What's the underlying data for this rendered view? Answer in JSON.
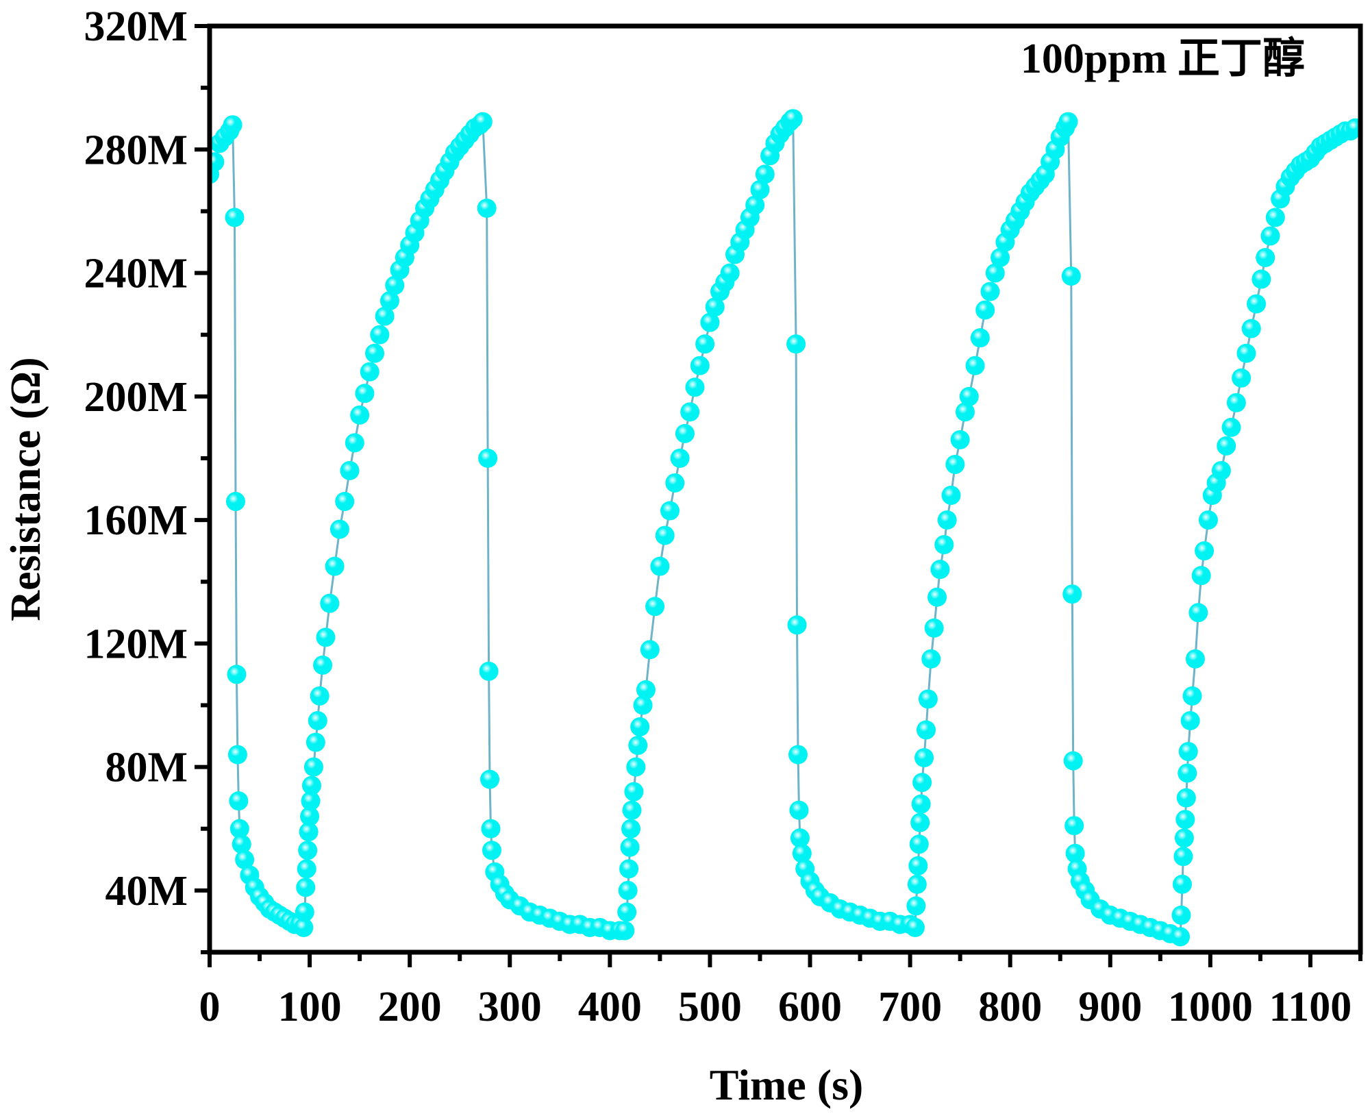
{
  "chart_data": {
    "type": "scatter",
    "title": "",
    "annotation": "100ppm 正丁醇",
    "xlabel": "Time (s)",
    "ylabel": "Resistance (Ω)",
    "xlim": [
      0,
      1150
    ],
    "ylim": [
      20,
      320
    ],
    "x_unit": "s",
    "y_unit": "MΩ",
    "xticks": [
      0,
      100,
      200,
      300,
      400,
      500,
      600,
      700,
      800,
      900,
      1000,
      1100
    ],
    "xtick_labels": [
      "0",
      "100",
      "200",
      "300",
      "400",
      "500",
      "600",
      "700",
      "800",
      "900",
      "1000",
      "1100"
    ],
    "yticks": [
      40,
      80,
      120,
      160,
      200,
      240,
      280,
      320
    ],
    "ytick_labels": [
      "40M",
      "80M",
      "120M",
      "160M",
      "200M",
      "240M",
      "280M",
      "320M"
    ],
    "grid": false,
    "legend": "none",
    "colors": {
      "marker": "#00F2F2",
      "marker_highlight": "#E8FFFF",
      "line": "#6FB3C8",
      "axis": "#000000"
    },
    "series": [
      {
        "points": [
          [
            0,
            272
          ],
          [
            5,
            276
          ],
          [
            10,
            282
          ],
          [
            15,
            284
          ],
          [
            20,
            286
          ],
          [
            23,
            288
          ],
          [
            25,
            258
          ],
          [
            26,
            166
          ],
          [
            27,
            110
          ],
          [
            28,
            84
          ],
          [
            29,
            69
          ],
          [
            30,
            60
          ],
          [
            32,
            55
          ],
          [
            35,
            50
          ],
          [
            40,
            45
          ],
          [
            45,
            41
          ],
          [
            50,
            38
          ],
          [
            55,
            36
          ],
          [
            60,
            34
          ],
          [
            65,
            33
          ],
          [
            70,
            32
          ],
          [
            75,
            31
          ],
          [
            80,
            30
          ],
          [
            85,
            29
          ],
          [
            90,
            29
          ],
          [
            94,
            28
          ],
          [
            95,
            33
          ],
          [
            96,
            41
          ],
          [
            97,
            47
          ],
          [
            98,
            53
          ],
          [
            99,
            59
          ],
          [
            100,
            64
          ],
          [
            101,
            69
          ],
          [
            102,
            74
          ],
          [
            104,
            80
          ],
          [
            106,
            88
          ],
          [
            108,
            95
          ],
          [
            110,
            103
          ],
          [
            113,
            113
          ],
          [
            116,
            122
          ],
          [
            120,
            133
          ],
          [
            125,
            145
          ],
          [
            130,
            157
          ],
          [
            135,
            166
          ],
          [
            140,
            176
          ],
          [
            145,
            185
          ],
          [
            150,
            194
          ],
          [
            155,
            201
          ],
          [
            160,
            208
          ],
          [
            165,
            214
          ],
          [
            170,
            220
          ],
          [
            175,
            226
          ],
          [
            180,
            231
          ],
          [
            185,
            236
          ],
          [
            190,
            241
          ],
          [
            195,
            245
          ],
          [
            200,
            249
          ],
          [
            205,
            253
          ],
          [
            210,
            257
          ],
          [
            215,
            261
          ],
          [
            220,
            264
          ],
          [
            225,
            267
          ],
          [
            230,
            270
          ],
          [
            235,
            273
          ],
          [
            240,
            276
          ],
          [
            245,
            279
          ],
          [
            250,
            281
          ],
          [
            255,
            283
          ],
          [
            260,
            285
          ],
          [
            265,
            287
          ],
          [
            270,
            288
          ],
          [
            273,
            289
          ],
          [
            277,
            261
          ],
          [
            278,
            180
          ],
          [
            279,
            111
          ],
          [
            280,
            76
          ],
          [
            281,
            60
          ],
          [
            282,
            53
          ],
          [
            285,
            46
          ],
          [
            290,
            42
          ],
          [
            295,
            39
          ],
          [
            300,
            37
          ],
          [
            310,
            35
          ],
          [
            320,
            33
          ],
          [
            330,
            32
          ],
          [
            340,
            31
          ],
          [
            350,
            30
          ],
          [
            360,
            29
          ],
          [
            370,
            29
          ],
          [
            380,
            28
          ],
          [
            390,
            28
          ],
          [
            400,
            27
          ],
          [
            410,
            27
          ],
          [
            415,
            27
          ],
          [
            417,
            33
          ],
          [
            418,
            40
          ],
          [
            419,
            47
          ],
          [
            420,
            54
          ],
          [
            421,
            60
          ],
          [
            422,
            66
          ],
          [
            424,
            72
          ],
          [
            426,
            80
          ],
          [
            428,
            87
          ],
          [
            430,
            93
          ],
          [
            433,
            100
          ],
          [
            436,
            105
          ],
          [
            440,
            118
          ],
          [
            445,
            132
          ],
          [
            450,
            145
          ],
          [
            455,
            155
          ],
          [
            460,
            163
          ],
          [
            465,
            172
          ],
          [
            470,
            180
          ],
          [
            475,
            188
          ],
          [
            480,
            195
          ],
          [
            485,
            203
          ],
          [
            490,
            210
          ],
          [
            495,
            217
          ],
          [
            500,
            224
          ],
          [
            505,
            229
          ],
          [
            510,
            234
          ],
          [
            515,
            237
          ],
          [
            520,
            240
          ],
          [
            525,
            246
          ],
          [
            530,
            250
          ],
          [
            535,
            254
          ],
          [
            540,
            258
          ],
          [
            545,
            262
          ],
          [
            550,
            267
          ],
          [
            555,
            272
          ],
          [
            560,
            278
          ],
          [
            565,
            282
          ],
          [
            570,
            285
          ],
          [
            575,
            287
          ],
          [
            580,
            289
          ],
          [
            583,
            290
          ],
          [
            586,
            217
          ],
          [
            587,
            126
          ],
          [
            588,
            84
          ],
          [
            589,
            66
          ],
          [
            590,
            57
          ],
          [
            592,
            52
          ],
          [
            595,
            47
          ],
          [
            600,
            43
          ],
          [
            605,
            40
          ],
          [
            610,
            38
          ],
          [
            620,
            36
          ],
          [
            630,
            34
          ],
          [
            640,
            33
          ],
          [
            650,
            32
          ],
          [
            660,
            31
          ],
          [
            670,
            30
          ],
          [
            680,
            30
          ],
          [
            690,
            29
          ],
          [
            700,
            29
          ],
          [
            705,
            28
          ],
          [
            706,
            35
          ],
          [
            707,
            42
          ],
          [
            708,
            48
          ],
          [
            709,
            55
          ],
          [
            710,
            62
          ],
          [
            711,
            68
          ],
          [
            712,
            75
          ],
          [
            714,
            83
          ],
          [
            716,
            92
          ],
          [
            718,
            102
          ],
          [
            721,
            115
          ],
          [
            724,
            125
          ],
          [
            727,
            135
          ],
          [
            730,
            144
          ],
          [
            734,
            152
          ],
          [
            737,
            160
          ],
          [
            741,
            168
          ],
          [
            745,
            178
          ],
          [
            750,
            186
          ],
          [
            755,
            195
          ],
          [
            759,
            200
          ],
          [
            765,
            210
          ],
          [
            770,
            219
          ],
          [
            775,
            228
          ],
          [
            780,
            234
          ],
          [
            785,
            240
          ],
          [
            790,
            245
          ],
          [
            795,
            250
          ],
          [
            800,
            254
          ],
          [
            805,
            257
          ],
          [
            810,
            260
          ],
          [
            815,
            263
          ],
          [
            820,
            266
          ],
          [
            825,
            268
          ],
          [
            830,
            270
          ],
          [
            835,
            272
          ],
          [
            840,
            276
          ],
          [
            845,
            280
          ],
          [
            850,
            284
          ],
          [
            855,
            287
          ],
          [
            858,
            289
          ],
          [
            861,
            239
          ],
          [
            862,
            136
          ],
          [
            863,
            82
          ],
          [
            864,
            61
          ],
          [
            865,
            52
          ],
          [
            867,
            47
          ],
          [
            870,
            43
          ],
          [
            875,
            40
          ],
          [
            880,
            37
          ],
          [
            890,
            34
          ],
          [
            900,
            32
          ],
          [
            910,
            31
          ],
          [
            920,
            30
          ],
          [
            930,
            29
          ],
          [
            940,
            28
          ],
          [
            950,
            27
          ],
          [
            960,
            26
          ],
          [
            970,
            25
          ],
          [
            971,
            32
          ],
          [
            972,
            42
          ],
          [
            973,
            51
          ],
          [
            974,
            57
          ],
          [
            975,
            63
          ],
          [
            976,
            70
          ],
          [
            977,
            78
          ],
          [
            978,
            85
          ],
          [
            980,
            95
          ],
          [
            982,
            103
          ],
          [
            985,
            115
          ],
          [
            988,
            130
          ],
          [
            991,
            142
          ],
          [
            994,
            150
          ],
          [
            998,
            160
          ],
          [
            1002,
            168
          ],
          [
            1006,
            172
          ],
          [
            1011,
            176
          ],
          [
            1016,
            184
          ],
          [
            1021,
            190
          ],
          [
            1026,
            198
          ],
          [
            1031,
            206
          ],
          [
            1036,
            214
          ],
          [
            1041,
            222
          ],
          [
            1046,
            230
          ],
          [
            1051,
            238
          ],
          [
            1055,
            245
          ],
          [
            1060,
            252
          ],
          [
            1065,
            258
          ],
          [
            1070,
            264
          ],
          [
            1075,
            268
          ],
          [
            1080,
            271
          ],
          [
            1085,
            273
          ],
          [
            1090,
            275
          ],
          [
            1095,
            276
          ],
          [
            1100,
            277
          ],
          [
            1105,
            279
          ],
          [
            1110,
            281
          ],
          [
            1115,
            282
          ],
          [
            1120,
            283
          ],
          [
            1125,
            284
          ],
          [
            1130,
            285
          ],
          [
            1135,
            286
          ],
          [
            1140,
            286
          ],
          [
            1145,
            287
          ]
        ]
      }
    ]
  }
}
